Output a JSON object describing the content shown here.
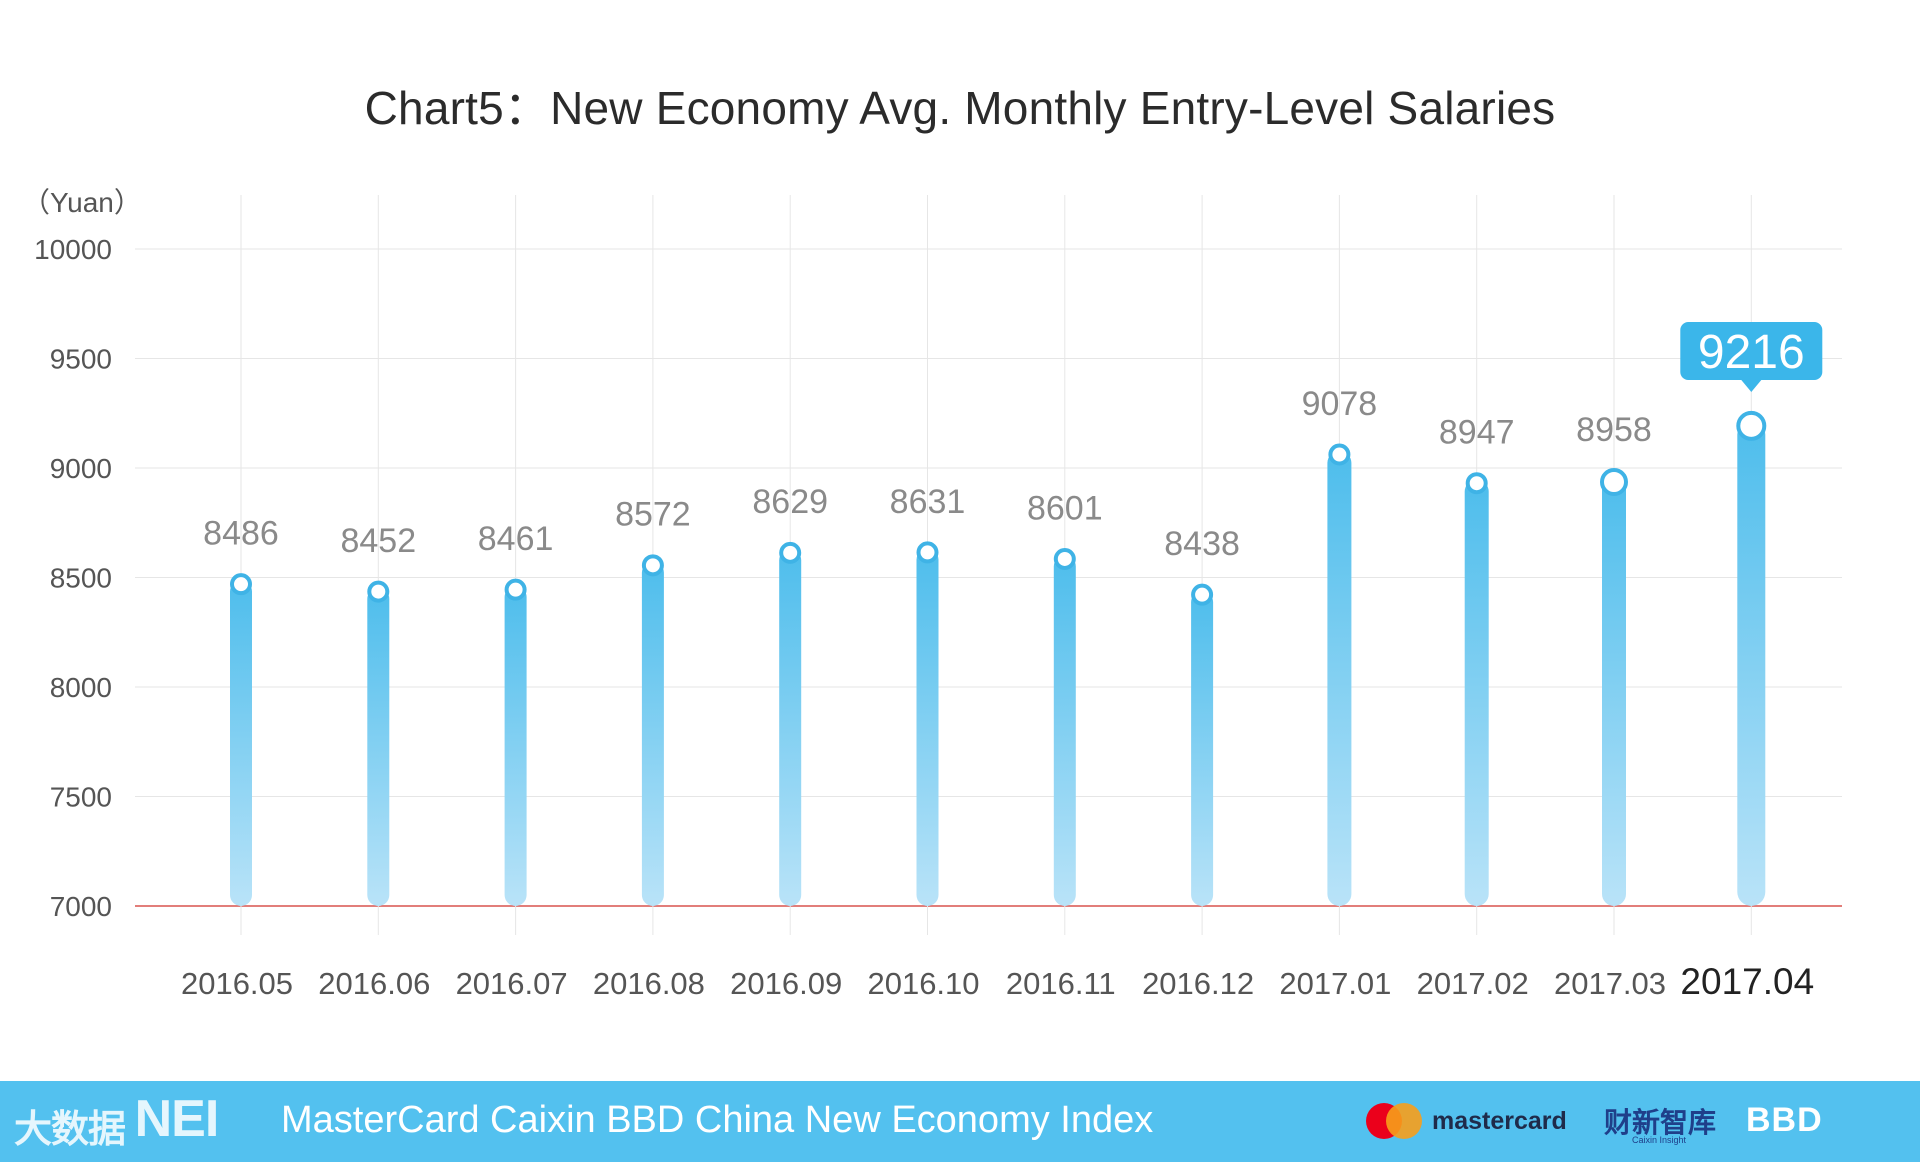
{
  "chart_data": {
    "type": "bar",
    "title": "Chart5：New Economy Avg. Monthly Entry-Level Salaries",
    "ylabel": "（Yuan）",
    "xlabel": "",
    "categories": [
      "2016.05",
      "2016.06",
      "2016.07",
      "2016.08",
      "2016.09",
      "2016.10",
      "2016.11",
      "2016.12",
      "2017.01",
      "2017.02",
      "2017.03",
      "2017.04"
    ],
    "values": [
      8486,
      8452,
      8461,
      8572,
      8629,
      8631,
      8601,
      8438,
      9078,
      8947,
      8958,
      9216
    ],
    "ylim": [
      7000,
      10000
    ],
    "yticks": [
      7000,
      7500,
      8000,
      8500,
      9000,
      9500,
      10000
    ],
    "highlight": {
      "category": "2017.04",
      "label": "9216"
    },
    "grid": true,
    "colors": {
      "bar_top": "#4dbdec",
      "bar_bottom": "#b9e3f8",
      "baseline": "#d9534f",
      "callout": "#3bb6ea",
      "grid": "#e6e6e6"
    }
  },
  "footer": {
    "brand_prefix": "大数据",
    "brand_logo": "NEI",
    "index_name": "MasterCard Caixin BBD China New Economy Index",
    "logo_mastercard": "mastercard",
    "logo_caixin": "财新智库",
    "logo_caixin_sub": "Caixin Insight",
    "logo_bbd": "BBD"
  }
}
